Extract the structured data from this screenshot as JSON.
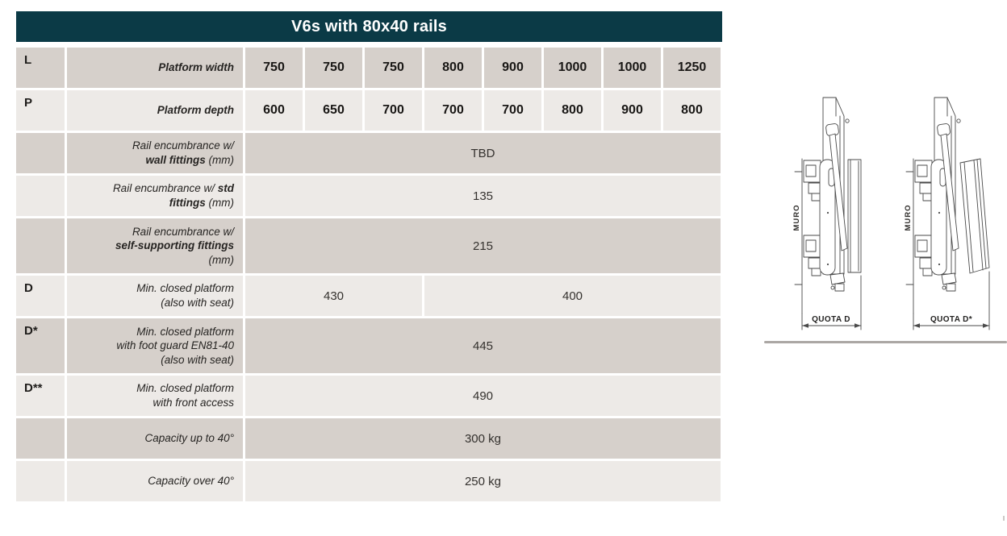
{
  "title": "V6s with 80x40 rails",
  "colors": {
    "header_bg": "#0b3a46",
    "row_dark": "#d6d0cb",
    "row_light": "#edeae7",
    "text": "#262422"
  },
  "table": {
    "rows": [
      {
        "letter": "L",
        "shade": "dark",
        "bold_values": true,
        "label": [
          {
            "text": "Platform width",
            "bold": true
          }
        ],
        "cells": [
          {
            "text": "750",
            "span": 1
          },
          {
            "text": "750",
            "span": 1
          },
          {
            "text": "750",
            "span": 1
          },
          {
            "text": "800",
            "span": 1
          },
          {
            "text": "900",
            "span": 1
          },
          {
            "text": "1000",
            "span": 1
          },
          {
            "text": "1000",
            "span": 1
          },
          {
            "text": "1250",
            "span": 1
          }
        ]
      },
      {
        "letter": "P",
        "shade": "light",
        "bold_values": true,
        "label": [
          {
            "text": "Platform depth",
            "bold": true
          }
        ],
        "cells": [
          {
            "text": "600",
            "span": 1
          },
          {
            "text": "650",
            "span": 1
          },
          {
            "text": "700",
            "span": 1
          },
          {
            "text": "700",
            "span": 1
          },
          {
            "text": "700",
            "span": 1
          },
          {
            "text": "800",
            "span": 1
          },
          {
            "text": "900",
            "span": 1
          },
          {
            "text": "800",
            "span": 1
          }
        ]
      },
      {
        "letter": "",
        "shade": "dark",
        "label": [
          {
            "text": "Rail encumbrance w/\n",
            "bold": false
          },
          {
            "text": "wall fittings",
            "bold": true
          },
          {
            "text": " (mm)",
            "bold": false
          }
        ],
        "cells": [
          {
            "text": "TBD",
            "span": 8
          }
        ]
      },
      {
        "letter": "",
        "shade": "light",
        "label": [
          {
            "text": "Rail encumbrance w/ ",
            "bold": false
          },
          {
            "text": "std\nfittings",
            "bold": true
          },
          {
            "text": " (mm)",
            "bold": false
          }
        ],
        "cells": [
          {
            "text": "135",
            "span": 8
          }
        ]
      },
      {
        "letter": "",
        "shade": "dark",
        "tall": true,
        "label": [
          {
            "text": "Rail encumbrance w/\n",
            "bold": false
          },
          {
            "text": "self-supporting fittings",
            "bold": true
          },
          {
            "text": "\n(mm)",
            "bold": false
          }
        ],
        "cells": [
          {
            "text": "215",
            "span": 8
          }
        ]
      },
      {
        "letter": "D",
        "shade": "light",
        "label": [
          {
            "text": "Min. closed platform\n(also with seat)",
            "bold": false
          }
        ],
        "cells": [
          {
            "text": "430",
            "span": 3
          },
          {
            "text": "400",
            "span": 5
          }
        ]
      },
      {
        "letter": "D*",
        "shade": "dark",
        "tall": true,
        "label": [
          {
            "text": "Min. closed platform\nwith foot guard EN81-40\n(also with seat)",
            "bold": false
          }
        ],
        "cells": [
          {
            "text": "445",
            "span": 8
          }
        ]
      },
      {
        "letter": "D**",
        "shade": "light",
        "label": [
          {
            "text": "Min. closed platform\nwith front access",
            "bold": false
          }
        ],
        "cells": [
          {
            "text": "490",
            "span": 8
          }
        ]
      },
      {
        "letter": "",
        "shade": "dark",
        "label": [
          {
            "text": "Capacity up to 40°",
            "bold": false
          }
        ],
        "cells": [
          {
            "text": "300 kg",
            "span": 8
          }
        ]
      },
      {
        "letter": "",
        "shade": "light",
        "label": [
          {
            "text": "Capacity over 40°",
            "bold": false
          }
        ],
        "cells": [
          {
            "text": "250 kg",
            "span": 8
          }
        ]
      }
    ]
  },
  "figures": [
    {
      "wall_label": "MURO",
      "dimension_label": "QUOTA D"
    },
    {
      "wall_label": "MURO",
      "dimension_label": "QUOTA D*"
    }
  ]
}
